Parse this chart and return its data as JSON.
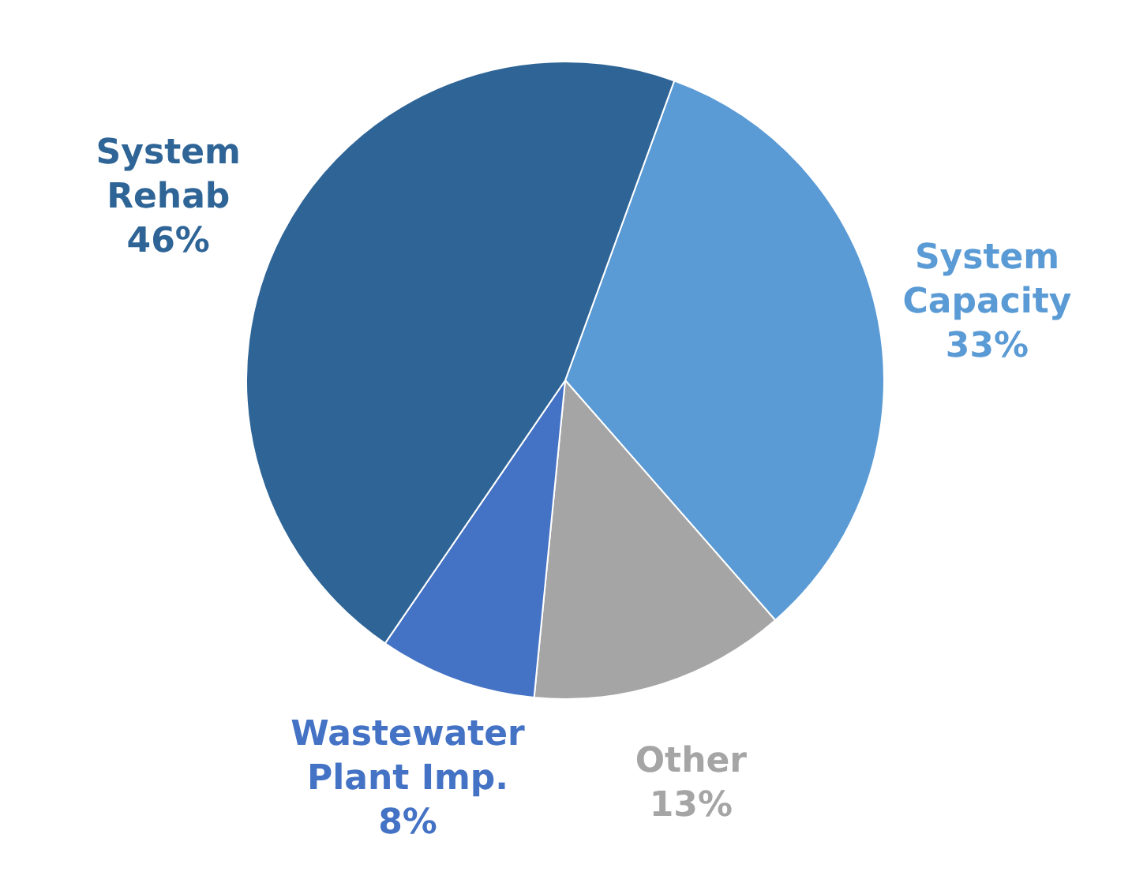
{
  "chart_data": {
    "type": "pie",
    "categories": [
      "System Capacity",
      "Other",
      "Wastewater Plant Imp.",
      "System Rehab"
    ],
    "values": [
      33,
      13,
      8,
      46
    ],
    "colors": [
      "#5b9bd5",
      "#a5a5a5",
      "#4472c4",
      "#2e6496"
    ],
    "value_labels": [
      "33%",
      "13%",
      "8%",
      "46%"
    ]
  }
}
